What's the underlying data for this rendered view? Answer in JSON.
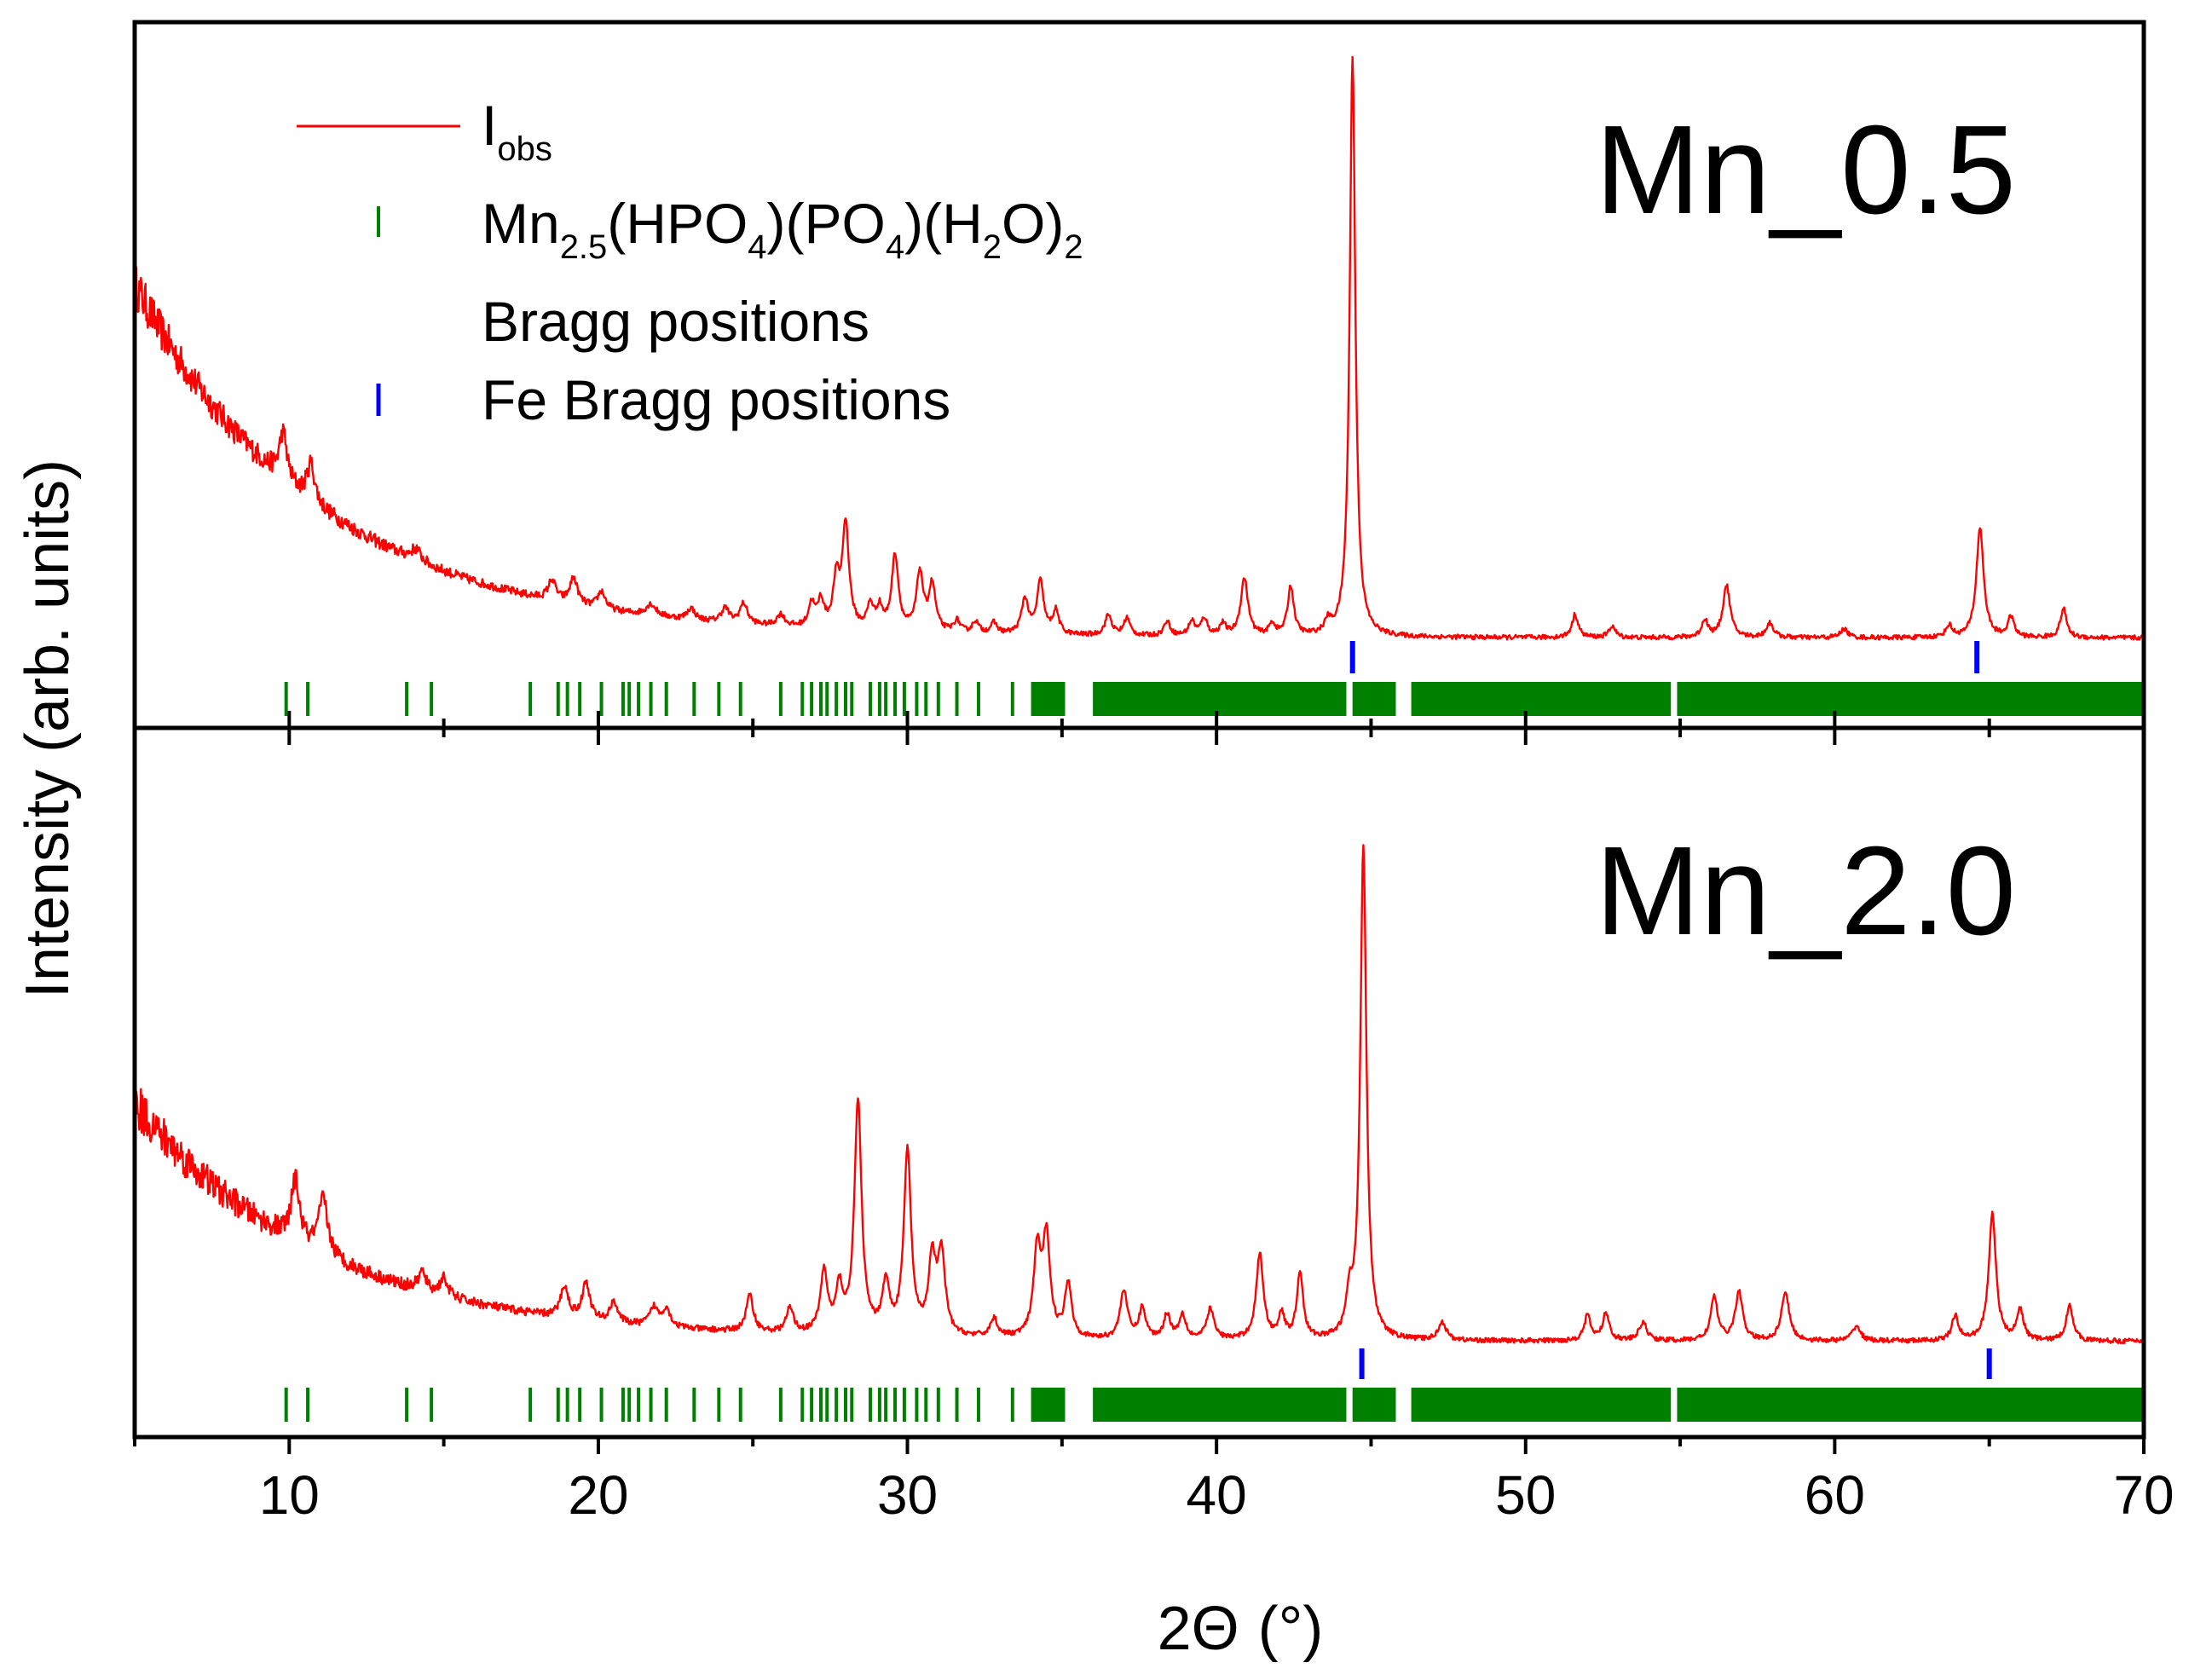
{
  "colors": {
    "observed": "#ff0000",
    "mn_phase_ticks": "#008000",
    "fe_ticks": "#0000ff",
    "axes": "#000000"
  },
  "chart_data": {
    "type": "line",
    "x_label_symbol": "2Θ",
    "x_label_unit": "(°)",
    "y_label": "Intensity (arb. units)",
    "xlim": [
      5,
      70
    ],
    "xticks": [
      10,
      20,
      30,
      40,
      50,
      60,
      70
    ],
    "y_tick_labels": "none",
    "legend": {
      "placement": "top-left",
      "items": [
        {
          "kind": "line",
          "label_main": "I",
          "label_sub": "obs",
          "color": "#ff0000"
        },
        {
          "kind": "tick",
          "formula_parts": [
            {
              "t": "Mn"
            },
            {
              "t": "2.5",
              "sub": true
            },
            {
              "t": "(HPO"
            },
            {
              "t": "4",
              "sub": true
            },
            {
              "t": ")(PO"
            },
            {
              "t": "4",
              "sub": true
            },
            {
              "t": ")(H"
            },
            {
              "t": "2",
              "sub": true
            },
            {
              "t": "O)"
            },
            {
              "t": "2",
              "sub": true
            }
          ],
          "label_line2": "Bragg positions",
          "color": "#008000"
        },
        {
          "kind": "tick",
          "label": "Fe Bragg positions",
          "color": "#0000ff"
        }
      ]
    },
    "mn_phase_bragg_positions": {
      "discrete": [
        9.9,
        10.6,
        13.8,
        14.6,
        17.8,
        18.7,
        19.0,
        19.4,
        20.1,
        20.8,
        21.0,
        21.3,
        21.7,
        22.2,
        23.1,
        23.9,
        24.6,
        25.9,
        26.6,
        26.9,
        27.2,
        27.4,
        27.7,
        28.0,
        28.2,
        28.8,
        29.1,
        29.3,
        29.6,
        29.9,
        30.3,
        30.6,
        31.0,
        31.6,
        32.3,
        33.4
      ],
      "dense_ranges": [
        [
          34.0,
          35.1
        ],
        [
          36.0,
          44.2
        ],
        [
          44.4,
          45.8
        ],
        [
          46.3,
          54.7
        ],
        [
          54.9,
          70.0
        ]
      ]
    },
    "panels": [
      {
        "label": "Mn_0.5",
        "series_name": "I_obs",
        "background": {
          "y_at_5": 0.63,
          "asymptote": 0.02,
          "decay_deg": 6.0
        },
        "fe_bragg_positions": [
          44.4,
          64.6
        ],
        "peaks": [
          {
            "x": 9.8,
            "h": 0.08,
            "w": 0.15
          },
          {
            "x": 10.7,
            "h": 0.065,
            "w": 0.15
          },
          {
            "x": 14.1,
            "h": 0.02,
            "w": 0.2
          },
          {
            "x": 18.5,
            "h": 0.035,
            "w": 0.15
          },
          {
            "x": 19.2,
            "h": 0.045,
            "w": 0.15
          },
          {
            "x": 20.1,
            "h": 0.03,
            "w": 0.15
          },
          {
            "x": 21.7,
            "h": 0.02,
            "w": 0.2
          },
          {
            "x": 23.0,
            "h": 0.02,
            "w": 0.15
          },
          {
            "x": 24.1,
            "h": 0.025,
            "w": 0.15
          },
          {
            "x": 24.7,
            "h": 0.035,
            "w": 0.15
          },
          {
            "x": 25.9,
            "h": 0.02,
            "w": 0.15
          },
          {
            "x": 26.9,
            "h": 0.04,
            "w": 0.12
          },
          {
            "x": 27.2,
            "h": 0.045,
            "w": 0.12
          },
          {
            "x": 27.7,
            "h": 0.08,
            "w": 0.12
          },
          {
            "x": 28.0,
            "h": 0.18,
            "w": 0.13
          },
          {
            "x": 28.8,
            "h": 0.04,
            "w": 0.12
          },
          {
            "x": 29.1,
            "h": 0.035,
            "w": 0.12
          },
          {
            "x": 29.6,
            "h": 0.13,
            "w": 0.13
          },
          {
            "x": 30.4,
            "h": 0.1,
            "w": 0.13
          },
          {
            "x": 30.8,
            "h": 0.08,
            "w": 0.13
          },
          {
            "x": 31.6,
            "h": 0.02,
            "w": 0.12
          },
          {
            "x": 32.2,
            "h": 0.02,
            "w": 0.12
          },
          {
            "x": 32.8,
            "h": 0.018,
            "w": 0.12
          },
          {
            "x": 33.8,
            "h": 0.06,
            "w": 0.13
          },
          {
            "x": 34.3,
            "h": 0.09,
            "w": 0.13
          },
          {
            "x": 34.8,
            "h": 0.04,
            "w": 0.12
          },
          {
            "x": 36.5,
            "h": 0.035,
            "w": 0.13
          },
          {
            "x": 37.1,
            "h": 0.03,
            "w": 0.12
          },
          {
            "x": 38.4,
            "h": 0.025,
            "w": 0.12
          },
          {
            "x": 39.2,
            "h": 0.025,
            "w": 0.12
          },
          {
            "x": 39.6,
            "h": 0.03,
            "w": 0.12
          },
          {
            "x": 40.2,
            "h": 0.02,
            "w": 0.12
          },
          {
            "x": 40.9,
            "h": 0.1,
            "w": 0.14
          },
          {
            "x": 41.8,
            "h": 0.02,
            "w": 0.12
          },
          {
            "x": 42.4,
            "h": 0.085,
            "w": 0.12
          },
          {
            "x": 43.6,
            "h": 0.02,
            "w": 0.12
          },
          {
            "x": 44.4,
            "h": 1.0,
            "w": 0.11
          },
          {
            "x": 51.6,
            "h": 0.04,
            "w": 0.12
          },
          {
            "x": 52.8,
            "h": 0.02,
            "w": 0.12
          },
          {
            "x": 55.8,
            "h": 0.03,
            "w": 0.12
          },
          {
            "x": 56.5,
            "h": 0.09,
            "w": 0.14
          },
          {
            "x": 57.9,
            "h": 0.025,
            "w": 0.14
          },
          {
            "x": 60.3,
            "h": 0.015,
            "w": 0.14
          },
          {
            "x": 63.7,
            "h": 0.02,
            "w": 0.12
          },
          {
            "x": 64.7,
            "h": 0.19,
            "w": 0.14
          },
          {
            "x": 65.7,
            "h": 0.035,
            "w": 0.12
          },
          {
            "x": 67.4,
            "h": 0.05,
            "w": 0.12
          }
        ]
      },
      {
        "label": "Mn_2.0",
        "series_name": "I_obs",
        "background": {
          "y_at_5": 0.41,
          "asymptote": 0.02,
          "decay_deg": 6.0
        },
        "fe_bragg_positions": [
          44.7,
          65.0
        ],
        "peaks": [
          {
            "x": 10.2,
            "h": 0.1,
            "w": 0.16
          },
          {
            "x": 11.1,
            "h": 0.09,
            "w": 0.18
          },
          {
            "x": 14.3,
            "h": 0.03,
            "w": 0.15
          },
          {
            "x": 15.0,
            "h": 0.03,
            "w": 0.15
          },
          {
            "x": 18.9,
            "h": 0.05,
            "w": 0.15
          },
          {
            "x": 19.6,
            "h": 0.06,
            "w": 0.15
          },
          {
            "x": 20.5,
            "h": 0.035,
            "w": 0.14
          },
          {
            "x": 21.8,
            "h": 0.03,
            "w": 0.16
          },
          {
            "x": 22.2,
            "h": 0.03,
            "w": 0.15
          },
          {
            "x": 24.9,
            "h": 0.06,
            "w": 0.14
          },
          {
            "x": 26.2,
            "h": 0.04,
            "w": 0.14
          },
          {
            "x": 27.3,
            "h": 0.1,
            "w": 0.14
          },
          {
            "x": 27.8,
            "h": 0.07,
            "w": 0.13
          },
          {
            "x": 28.4,
            "h": 0.38,
            "w": 0.14
          },
          {
            "x": 29.3,
            "h": 0.08,
            "w": 0.14
          },
          {
            "x": 30.0,
            "h": 0.3,
            "w": 0.14
          },
          {
            "x": 30.8,
            "h": 0.12,
            "w": 0.14
          },
          {
            "x": 31.1,
            "h": 0.13,
            "w": 0.14
          },
          {
            "x": 32.8,
            "h": 0.03,
            "w": 0.14
          },
          {
            "x": 34.2,
            "h": 0.14,
            "w": 0.14
          },
          {
            "x": 34.5,
            "h": 0.16,
            "w": 0.14
          },
          {
            "x": 35.2,
            "h": 0.09,
            "w": 0.13
          },
          {
            "x": 37.0,
            "h": 0.08,
            "w": 0.14
          },
          {
            "x": 37.6,
            "h": 0.05,
            "w": 0.13
          },
          {
            "x": 38.4,
            "h": 0.04,
            "w": 0.13
          },
          {
            "x": 38.9,
            "h": 0.04,
            "w": 0.13
          },
          {
            "x": 39.8,
            "h": 0.05,
            "w": 0.14
          },
          {
            "x": 41.4,
            "h": 0.14,
            "w": 0.14
          },
          {
            "x": 42.1,
            "h": 0.04,
            "w": 0.12
          },
          {
            "x": 42.7,
            "h": 0.11,
            "w": 0.12
          },
          {
            "x": 44.3,
            "h": 0.06,
            "w": 0.12
          },
          {
            "x": 44.75,
            "h": 0.81,
            "w": 0.12
          },
          {
            "x": 47.3,
            "h": 0.03,
            "w": 0.15
          },
          {
            "x": 52.0,
            "h": 0.04,
            "w": 0.13
          },
          {
            "x": 52.6,
            "h": 0.045,
            "w": 0.13
          },
          {
            "x": 53.8,
            "h": 0.03,
            "w": 0.15
          },
          {
            "x": 56.1,
            "h": 0.07,
            "w": 0.14
          },
          {
            "x": 56.9,
            "h": 0.08,
            "w": 0.14
          },
          {
            "x": 58.4,
            "h": 0.08,
            "w": 0.15
          },
          {
            "x": 60.7,
            "h": 0.025,
            "w": 0.15
          },
          {
            "x": 63.9,
            "h": 0.04,
            "w": 0.13
          },
          {
            "x": 65.1,
            "h": 0.21,
            "w": 0.14
          },
          {
            "x": 66.0,
            "h": 0.05,
            "w": 0.13
          },
          {
            "x": 67.6,
            "h": 0.06,
            "w": 0.13
          }
        ]
      }
    ]
  }
}
